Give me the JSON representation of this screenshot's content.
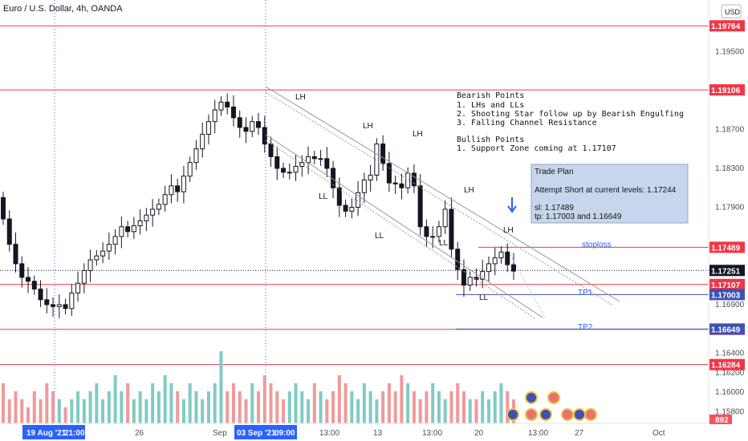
{
  "header": {
    "symbol_title": "Euro / U.S. Dollar, 4h, OANDA",
    "currency_badge": "USD"
  },
  "price_axis": {
    "labels": [
      "1.19500",
      "1.18700",
      "1.18300",
      "1.17900",
      "1.16900",
      "1.16400",
      "1.16200",
      "1.16000",
      "1.15800"
    ],
    "ymin": 1.1568,
    "ymax": 1.1998
  },
  "horizontal_levels": [
    {
      "price": 1.19764,
      "label": "1.19764",
      "color": "#f23645"
    },
    {
      "price": 1.19106,
      "label": "1.19106",
      "color": "#f23645"
    },
    {
      "price": 1.17489,
      "label": "1.17489",
      "color": "#f23645"
    },
    {
      "price": 1.17107,
      "label": "1.17107",
      "color": "#f23645"
    },
    {
      "price": 1.16646,
      "label": "1.16646",
      "color": "#f23645"
    },
    {
      "price": 1.16284,
      "label": "1.16284",
      "color": "#f23645"
    }
  ],
  "trade_levels": [
    {
      "price": 1.17003,
      "label": "1.17003",
      "color": "#3f51b5",
      "name": "TP1"
    },
    {
      "price": 1.16649,
      "label": "1.16649",
      "color": "#3f51b5",
      "name": "TP2"
    }
  ],
  "current_price": {
    "price": 1.17251,
    "label": "1.17251"
  },
  "level_names": {
    "stoploss": "stoploss",
    "tp1": "TP1",
    "tp2": "TP2"
  },
  "volume_badge": "892",
  "time_axis": {
    "labels": [
      "26",
      "Sep",
      "13:00",
      "13",
      "13:00",
      "20",
      "13:00",
      "27",
      "Oct"
    ],
    "highlighted": [
      "19 Aug '21",
      "21:00",
      "03 Sep '21",
      "09:00"
    ]
  },
  "annotations": {
    "bearish_title": "Bearish Points",
    "bearish_1": "1. LHs and LLs",
    "bearish_2": "2. Shooting Star follow up by Bearish Engulfing",
    "bearish_3": "3. Falling Channel Resistance",
    "bullish_title": "Bullish Points",
    "bullish_1": "1. Support Zone coming at 1.17107"
  },
  "trade_plan": {
    "title": "Trade Plan",
    "line1": "Attempt Short at current levels: 1.17244",
    "line2": "sl: 1.17489",
    "line3": "tp: 1.17003 and 1.16649"
  },
  "swing_labels": [
    "LH",
    "LH",
    "LH",
    "LH",
    "LH",
    "LL",
    "LL",
    "LL",
    "LL"
  ],
  "chart_data": {
    "type": "candlestick",
    "symbol": "EURUSD",
    "timeframe": "4h",
    "close_approx": [
      1.1778,
      1.1752,
      1.1732,
      1.1718,
      1.1714,
      1.1706,
      1.1695,
      1.169,
      1.1688,
      1.169,
      1.1686,
      1.1702,
      1.1712,
      1.1725,
      1.1736,
      1.174,
      1.1745,
      1.1752,
      1.176,
      1.177,
      1.1765,
      1.1771,
      1.1776,
      1.1782,
      1.1788,
      1.1793,
      1.1803,
      1.1812,
      1.1806,
      1.1822,
      1.1836,
      1.185,
      1.1865,
      1.1878,
      1.189,
      1.1898,
      1.1893,
      1.1882,
      1.1872,
      1.1868,
      1.1878,
      1.1872,
      1.1855,
      1.1842,
      1.183,
      1.1826,
      1.1826,
      1.1832,
      1.1836,
      1.1842,
      1.184,
      1.184,
      1.183,
      1.181,
      1.1792,
      1.1786,
      1.179,
      1.1805,
      1.1818,
      1.1823,
      1.1855,
      1.1835,
      1.1815,
      1.1814,
      1.181,
      1.1825,
      1.1812,
      1.177,
      1.176,
      1.176,
      1.177,
      1.1788,
      1.1747,
      1.1726,
      1.171,
      1.1718,
      1.1716,
      1.1724,
      1.1732,
      1.1738,
      1.1744,
      1.1731,
      1.17244
    ],
    "volume_approx": [
      5,
      3,
      4,
      3,
      2,
      4,
      3,
      5,
      4,
      3,
      2,
      3,
      4,
      3,
      4,
      5,
      3,
      4,
      6,
      4,
      5,
      3,
      4,
      3,
      5,
      4,
      6,
      5,
      4,
      3,
      5,
      4,
      3,
      4,
      5,
      9,
      4,
      5,
      4,
      3,
      5,
      4,
      6,
      5,
      4,
      3,
      4,
      5,
      4,
      3,
      5,
      4,
      3,
      4,
      6,
      5,
      4,
      3,
      5,
      4,
      3,
      4,
      5,
      4,
      6,
      5,
      4,
      3,
      4,
      5,
      4,
      3,
      4,
      5,
      4,
      3,
      3,
      4,
      3,
      4,
      5,
      4,
      3
    ],
    "ylim": [
      1.1568,
      1.1998
    ]
  }
}
